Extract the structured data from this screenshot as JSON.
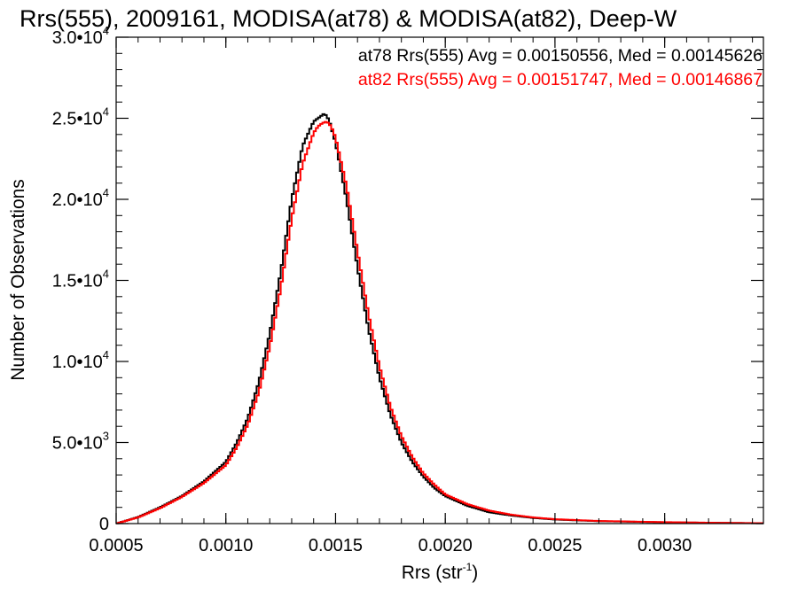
{
  "chart_data": {
    "type": "line",
    "title": "Rrs(555), 2009161, MODISA(at78) & MODISA(at82), Deep-W",
    "xlabel": "Rrs (str",
    "xlabel_sup": "-1",
    "xlabel_close": ")",
    "ylabel": "Number of Observations",
    "xlim": [
      0.0005,
      0.00345
    ],
    "ylim": [
      0,
      30000
    ],
    "x_ticks": [
      {
        "value": 0.0005,
        "label": "0.0005"
      },
      {
        "value": 0.001,
        "label": "0.0010"
      },
      {
        "value": 0.0015,
        "label": "0.0015"
      },
      {
        "value": 0.002,
        "label": "0.0020"
      },
      {
        "value": 0.0025,
        "label": "0.0025"
      },
      {
        "value": 0.003,
        "label": "0.0030"
      }
    ],
    "y_ticks": [
      {
        "value": 0,
        "mantissa": "0",
        "exponent": ""
      },
      {
        "value": 5000,
        "mantissa": "5.0•10",
        "exponent": "3"
      },
      {
        "value": 10000,
        "mantissa": "1.0•10",
        "exponent": "4"
      },
      {
        "value": 15000,
        "mantissa": "1.5•10",
        "exponent": "4"
      },
      {
        "value": 20000,
        "mantissa": "2.0•10",
        "exponent": "4"
      },
      {
        "value": 25000,
        "mantissa": "2.5•10",
        "exponent": "4"
      },
      {
        "value": 30000,
        "mantissa": "3.0•10",
        "exponent": "4"
      }
    ],
    "x_minor_step": 0.0001,
    "y_minor_step": 1000,
    "legend_position": "top-right",
    "series": [
      {
        "name": "at78 Rrs(555) Avg = 0.00150556, Med = 0.00145626",
        "color": "#000000",
        "x": [
          0.0005,
          0.0006,
          0.0007,
          0.0008,
          0.0009,
          0.001,
          0.00105,
          0.0011,
          0.00115,
          0.0012,
          0.00125,
          0.0013,
          0.00135,
          0.0014,
          0.00142,
          0.00144,
          0.00145,
          0.00147,
          0.0015,
          0.00155,
          0.0016,
          0.00165,
          0.0017,
          0.00175,
          0.0018,
          0.00185,
          0.0019,
          0.00195,
          0.002,
          0.0021,
          0.0022,
          0.0023,
          0.0024,
          0.0025,
          0.0027,
          0.003,
          0.0032,
          0.00345
        ],
        "y": [
          0,
          400,
          1000,
          1700,
          2600,
          3800,
          5000,
          6500,
          8700,
          11700,
          15500,
          20000,
          23300,
          24800,
          25000,
          25200,
          25300,
          24900,
          23500,
          20000,
          15800,
          12000,
          9000,
          6700,
          5000,
          3800,
          2900,
          2200,
          1700,
          1100,
          700,
          500,
          350,
          250,
          150,
          80,
          50,
          20
        ]
      },
      {
        "name": "at82 Rrs(555) Avg = 0.00151747, Med = 0.00146867",
        "color": "#ff0000",
        "x": [
          0.0005,
          0.0006,
          0.0007,
          0.0008,
          0.0009,
          0.001,
          0.00105,
          0.0011,
          0.00115,
          0.0012,
          0.00125,
          0.0013,
          0.00135,
          0.0014,
          0.00142,
          0.00144,
          0.00146,
          0.00148,
          0.0015,
          0.00155,
          0.0016,
          0.00165,
          0.0017,
          0.00175,
          0.0018,
          0.00185,
          0.0019,
          0.00195,
          0.002,
          0.0021,
          0.0022,
          0.0023,
          0.0024,
          0.0025,
          0.0027,
          0.003,
          0.0032,
          0.00345
        ],
        "y": [
          0,
          380,
          950,
          1650,
          2500,
          3600,
          4700,
          6100,
          8100,
          10900,
          14500,
          18800,
          22200,
          24100,
          24500,
          24700,
          24800,
          24500,
          23800,
          20800,
          16800,
          12900,
          9700,
          7200,
          5400,
          4100,
          3100,
          2400,
          1800,
          1200,
          800,
          550,
          380,
          270,
          160,
          90,
          55,
          25
        ]
      }
    ]
  }
}
